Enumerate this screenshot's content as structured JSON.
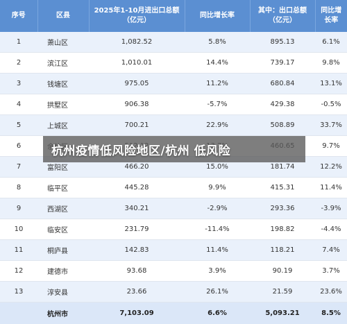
{
  "table": {
    "headers": [
      "序号",
      "区县",
      "2025年1-10月进出口总额\n（亿元）",
      "同比增长率",
      "其中：出口总额\n（亿元）",
      "同比增长率"
    ],
    "rows": [
      [
        "1",
        "萧山区",
        "1,082.52",
        "5.8%",
        "895.13",
        "6.1%"
      ],
      [
        "2",
        "滨江区",
        "1,010.01",
        "14.4%",
        "739.17",
        "9.8%"
      ],
      [
        "3",
        "钱塘区",
        "975.05",
        "11.2%",
        "680.84",
        "13.1%"
      ],
      [
        "4",
        "拱墅区",
        "906.38",
        "-5.7%",
        "429.38",
        "-0.5%"
      ],
      [
        "5",
        "上城区",
        "700.21",
        "22.9%",
        "508.89",
        "33.7%"
      ],
      [
        "6",
        "余杭区",
        "512.12",
        "13.7%",
        "460.65",
        "9.7%"
      ],
      [
        "7",
        "富阳区",
        "466.20",
        "15.0%",
        "181.74",
        "12.2%"
      ],
      [
        "8",
        "临平区",
        "445.28",
        "9.9%",
        "415.31",
        "11.4%"
      ],
      [
        "9",
        "西湖区",
        "340.21",
        "-2.9%",
        "293.36",
        "-3.9%"
      ],
      [
        "10",
        "临安区",
        "231.79",
        "-11.4%",
        "198.82",
        "-4.4%"
      ],
      [
        "11",
        "桐庐县",
        "142.83",
        "11.4%",
        "118.21",
        "7.4%"
      ],
      [
        "12",
        "建德市",
        "93.68",
        "3.9%",
        "90.19",
        "3.7%"
      ],
      [
        "13",
        "淳安县",
        "23.66",
        "26.1%",
        "21.59",
        "23.6%"
      ]
    ],
    "total": [
      "",
      "杭州市",
      "7,103.09",
      "6.6%",
      "5,093.21",
      "8.5%"
    ]
  },
  "banner": {
    "text": "杭州疫情低风险地区/杭州 低风险"
  }
}
